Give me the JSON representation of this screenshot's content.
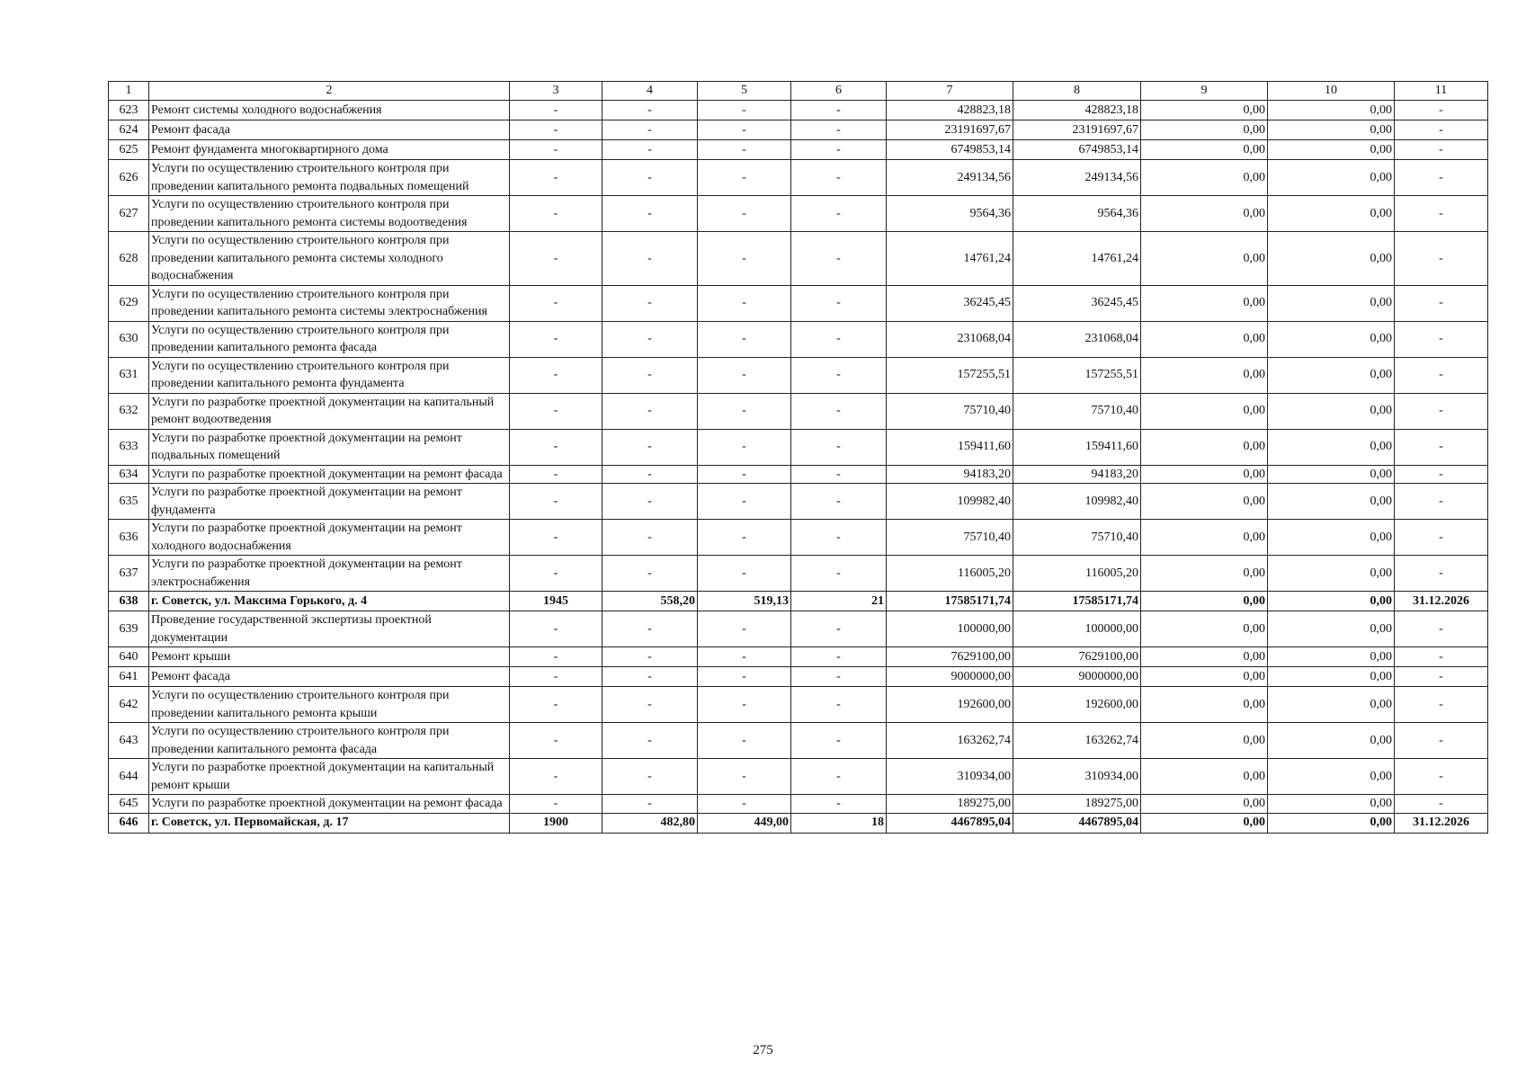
{
  "header": [
    "1",
    "2",
    "3",
    "4",
    "5",
    "6",
    "7",
    "8",
    "9",
    "10",
    "11"
  ],
  "rows": [
    {
      "c": [
        "623",
        "Ремонт системы холодного водоснабжения",
        "-",
        "-",
        "-",
        "-",
        "428823,18",
        "428823,18",
        "0,00",
        "0,00",
        "-"
      ]
    },
    {
      "c": [
        "624",
        "Ремонт фасада",
        "-",
        "-",
        "-",
        "-",
        "23191697,67",
        "23191697,67",
        "0,00",
        "0,00",
        "-"
      ]
    },
    {
      "c": [
        "625",
        "Ремонт фундамента многоквартирного дома",
        "-",
        "-",
        "-",
        "-",
        "6749853,14",
        "6749853,14",
        "0,00",
        "0,00",
        "-"
      ]
    },
    {
      "c": [
        "626",
        "Услуги по осуществлению строительного контроля при проведении капитального ремонта подвальных помещений",
        "-",
        "-",
        "-",
        "-",
        "249134,56",
        "249134,56",
        "0,00",
        "0,00",
        "-"
      ]
    },
    {
      "c": [
        "627",
        "Услуги по осуществлению строительного контроля при проведении капитального ремонта системы водоотведения",
        "-",
        "-",
        "-",
        "-",
        "9564,36",
        "9564,36",
        "0,00",
        "0,00",
        "-"
      ]
    },
    {
      "c": [
        "628",
        "Услуги по осуществлению строительного контроля при проведении капитального ремонта системы холодного водоснабжения",
        "-",
        "-",
        "-",
        "-",
        "14761,24",
        "14761,24",
        "0,00",
        "0,00",
        "-"
      ]
    },
    {
      "c": [
        "629",
        "Услуги по осуществлению строительного контроля при проведении капитального ремонта системы электроснабжения",
        "-",
        "-",
        "-",
        "-",
        "36245,45",
        "36245,45",
        "0,00",
        "0,00",
        "-"
      ]
    },
    {
      "c": [
        "630",
        "Услуги по осуществлению строительного контроля при проведении капитального ремонта фасада",
        "-",
        "-",
        "-",
        "-",
        "231068,04",
        "231068,04",
        "0,00",
        "0,00",
        "-"
      ]
    },
    {
      "c": [
        "631",
        "Услуги по осуществлению строительного контроля при проведении капитального ремонта фундамента",
        "-",
        "-",
        "-",
        "-",
        "157255,51",
        "157255,51",
        "0,00",
        "0,00",
        "-"
      ]
    },
    {
      "c": [
        "632",
        "Услуги по разработке проектной документации на капитальный ремонт водоотведения",
        "-",
        "-",
        "-",
        "-",
        "75710,40",
        "75710,40",
        "0,00",
        "0,00",
        "-"
      ]
    },
    {
      "c": [
        "633",
        "Услуги по разработке проектной документации на ремонт подвальных помещений",
        "-",
        "-",
        "-",
        "-",
        "159411,60",
        "159411,60",
        "0,00",
        "0,00",
        "-"
      ]
    },
    {
      "c": [
        "634",
        "Услуги по разработке проектной документации на ремонт фасада",
        "-",
        "-",
        "-",
        "-",
        "94183,20",
        "94183,20",
        "0,00",
        "0,00",
        "-"
      ]
    },
    {
      "c": [
        "635",
        "Услуги по разработке проектной документации на ремонт фундамента",
        "-",
        "-",
        "-",
        "-",
        "109982,40",
        "109982,40",
        "0,00",
        "0,00",
        "-"
      ]
    },
    {
      "c": [
        "636",
        "Услуги по разработке проектной документации на ремонт холодного водоснабжения",
        "-",
        "-",
        "-",
        "-",
        "75710,40",
        "75710,40",
        "0,00",
        "0,00",
        "-"
      ]
    },
    {
      "c": [
        "637",
        "Услуги по разработке проектной документации на ремонт электроснабжения",
        "-",
        "-",
        "-",
        "-",
        "116005,20",
        "116005,20",
        "0,00",
        "0,00",
        "-"
      ]
    },
    {
      "bold": true,
      "c": [
        "638",
        "г. Советск, ул. Максима Горького, д. 4",
        "1945",
        "558,20",
        "519,13",
        "21",
        "17585171,74",
        "17585171,74",
        "0,00",
        "0,00",
        "31.12.2026"
      ]
    },
    {
      "c": [
        "639",
        "Проведение государственной экспертизы проектной документации",
        "-",
        "-",
        "-",
        "-",
        "100000,00",
        "100000,00",
        "0,00",
        "0,00",
        "-"
      ]
    },
    {
      "c": [
        "640",
        "Ремонт крыши",
        "-",
        "-",
        "-",
        "-",
        "7629100,00",
        "7629100,00",
        "0,00",
        "0,00",
        "-"
      ]
    },
    {
      "c": [
        "641",
        "Ремонт фасада",
        "-",
        "-",
        "-",
        "-",
        "9000000,00",
        "9000000,00",
        "0,00",
        "0,00",
        "-"
      ]
    },
    {
      "c": [
        "642",
        "Услуги по осуществлению строительного контроля при проведении капитального ремонта крыши",
        "-",
        "-",
        "-",
        "-",
        "192600,00",
        "192600,00",
        "0,00",
        "0,00",
        "-"
      ]
    },
    {
      "c": [
        "643",
        "Услуги по осуществлению строительного контроля при проведении капитального ремонта фасада",
        "-",
        "-",
        "-",
        "-",
        "163262,74",
        "163262,74",
        "0,00",
        "0,00",
        "-"
      ]
    },
    {
      "c": [
        "644",
        "Услуги по разработке проектной документации на капитальный ремонт крыши",
        "-",
        "-",
        "-",
        "-",
        "310934,00",
        "310934,00",
        "0,00",
        "0,00",
        "-"
      ]
    },
    {
      "c": [
        "645",
        "Услуги по разработке проектной документации на ремонт фасада",
        "-",
        "-",
        "-",
        "-",
        "189275,00",
        "189275,00",
        "0,00",
        "0,00",
        "-"
      ]
    },
    {
      "bold": true,
      "c": [
        "646",
        "г. Советск, ул. Первомайская, д. 17",
        "1900",
        "482,80",
        "449,00",
        "18",
        "4467895,04",
        "4467895,04",
        "0,00",
        "0,00",
        "31.12.2026"
      ]
    }
  ],
  "page_number": "275"
}
